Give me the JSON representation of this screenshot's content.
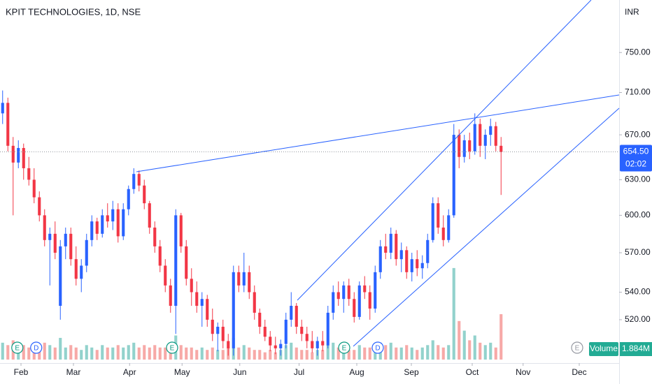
{
  "chart_data": {
    "type": "candlestick",
    "title": "KPIT TECHNOLOGIES, 1D, NSE",
    "y_axis_label": "INR",
    "log_scale": true,
    "ylim": [
      490,
      806
    ],
    "xlim": [
      0,
      118
    ],
    "yticks": [
      {
        "value": 520,
        "label": "520.00"
      },
      {
        "value": 540,
        "label": "540.00"
      },
      {
        "value": 570,
        "label": "570.00"
      },
      {
        "value": 600,
        "label": "600.00"
      },
      {
        "value": 630,
        "label": "630.00"
      },
      {
        "value": 670,
        "label": "670.00"
      },
      {
        "value": 710,
        "label": "710.00"
      },
      {
        "value": 750,
        "label": "750.00"
      }
    ],
    "xticks": [
      {
        "value": 4,
        "label": "Feb"
      },
      {
        "value": 14,
        "label": "Mar"
      },
      {
        "value": 24.7,
        "label": "Apr"
      },
      {
        "value": 34.7,
        "label": "May"
      },
      {
        "value": 45.7,
        "label": "Jun"
      },
      {
        "value": 57,
        "label": "Jul"
      },
      {
        "value": 68,
        "label": "Aug"
      },
      {
        "value": 78.4,
        "label": "Sep"
      },
      {
        "value": 90,
        "label": "Oct"
      },
      {
        "value": 99.7,
        "label": "Nov"
      },
      {
        "value": 110.4,
        "label": "Dec"
      }
    ],
    "up_color": "#2962ff",
    "down_color": "#f23645",
    "volume_up_color": "#26a69a",
    "volume_down_color": "#ef5350",
    "last_price": {
      "value": 654.5,
      "label": "654.50",
      "countdown": "02:02"
    },
    "volume_legend": {
      "label": "Volume",
      "value_label": "1.884M"
    },
    "events": [
      {
        "x": 3.3,
        "label": "E",
        "color": "#089981"
      },
      {
        "x": 6.9,
        "label": "D",
        "color": "#2962ff"
      },
      {
        "x": 32.8,
        "label": "E",
        "color": "#089981"
      },
      {
        "x": 65.6,
        "label": "E",
        "color": "#089981"
      },
      {
        "x": 72,
        "label": "D",
        "color": "#2962ff"
      },
      {
        "x": 110,
        "label": "E",
        "color": "#9598a1"
      }
    ],
    "ohlc": [
      [
        690,
        712,
        680,
        700
      ],
      [
        700,
        705,
        655,
        660
      ],
      [
        660,
        668,
        600,
        645
      ],
      [
        645,
        665,
        640,
        658
      ],
      [
        658,
        662,
        630,
        640
      ],
      [
        640,
        650,
        625,
        630
      ],
      [
        630,
        640,
        610,
        615
      ],
      [
        615,
        620,
        595,
        600
      ],
      [
        600,
        605,
        575,
        580
      ],
      [
        580,
        590,
        545,
        585
      ],
      [
        585,
        595,
        565,
        570
      ],
      [
        530,
        580,
        520,
        575
      ],
      [
        575,
        590,
        565,
        585
      ],
      [
        585,
        590,
        560,
        565
      ],
      [
        565,
        575,
        545,
        550
      ],
      [
        550,
        565,
        540,
        560
      ],
      [
        560,
        585,
        555,
        580
      ],
      [
        580,
        600,
        575,
        595
      ],
      [
        595,
        598,
        580,
        585
      ],
      [
        585,
        605,
        582,
        600
      ],
      [
        600,
        610,
        590,
        595
      ],
      [
        595,
        612,
        588,
        605
      ],
      [
        605,
        610,
        578,
        583
      ],
      [
        583,
        610,
        580,
        605
      ],
      [
        605,
        625,
        600,
        622
      ],
      [
        622,
        640,
        618,
        635
      ],
      [
        635,
        638,
        620,
        625
      ],
      [
        625,
        630,
        605,
        610
      ],
      [
        610,
        612,
        585,
        590
      ],
      [
        590,
        595,
        570,
        575
      ],
      [
        575,
        580,
        555,
        560
      ],
      [
        560,
        565,
        540,
        545
      ],
      [
        545,
        550,
        525,
        530
      ],
      [
        530,
        605,
        510,
        600
      ],
      [
        600,
        602,
        570,
        575
      ],
      [
        575,
        580,
        545,
        550
      ],
      [
        550,
        558,
        530,
        540
      ],
      [
        540,
        548,
        525,
        530
      ],
      [
        530,
        540,
        515,
        535
      ],
      [
        535,
        538,
        515,
        520
      ],
      [
        520,
        528,
        505,
        510
      ],
      [
        510,
        518,
        498,
        515
      ],
      [
        515,
        520,
        500,
        505
      ],
      [
        505,
        510,
        495,
        500
      ],
      [
        500,
        560,
        495,
        555
      ],
      [
        555,
        560,
        540,
        545
      ],
      [
        545,
        570,
        540,
        555
      ],
      [
        555,
        560,
        535,
        540
      ],
      [
        540,
        545,
        520,
        525
      ],
      [
        525,
        528,
        510,
        515
      ],
      [
        515,
        520,
        505,
        508
      ],
      [
        508,
        512,
        498,
        502
      ],
      [
        502,
        508,
        496,
        500
      ],
      [
        500,
        506,
        495,
        503
      ],
      [
        503,
        525,
        500,
        520
      ],
      [
        520,
        540,
        515,
        530
      ],
      [
        530,
        532,
        510,
        515
      ],
      [
        515,
        520,
        505,
        510
      ],
      [
        510,
        515,
        500,
        505
      ],
      [
        505,
        512,
        497,
        500
      ],
      [
        500,
        508,
        495,
        505
      ],
      [
        505,
        512,
        498,
        502
      ],
      [
        502,
        530,
        500,
        525
      ],
      [
        525,
        545,
        520,
        540
      ],
      [
        540,
        548,
        530,
        535
      ],
      [
        535,
        548,
        525,
        545
      ],
      [
        545,
        550,
        530,
        535
      ],
      [
        535,
        540,
        518,
        522
      ],
      [
        522,
        548,
        520,
        545
      ],
      [
        545,
        552,
        535,
        540
      ],
      [
        540,
        545,
        520,
        528
      ],
      [
        528,
        560,
        525,
        555
      ],
      [
        555,
        580,
        550,
        575
      ],
      [
        575,
        585,
        565,
        570
      ],
      [
        570,
        590,
        565,
        585
      ],
      [
        585,
        588,
        560,
        565
      ],
      [
        565,
        578,
        555,
        572
      ],
      [
        572,
        575,
        550,
        555
      ],
      [
        555,
        570,
        548,
        565
      ],
      [
        565,
        572,
        552,
        558
      ],
      [
        558,
        568,
        550,
        562
      ],
      [
        562,
        585,
        558,
        580
      ],
      [
        580,
        615,
        578,
        610
      ],
      [
        610,
        615,
        585,
        590
      ],
      [
        590,
        600,
        575,
        580
      ],
      [
        580,
        605,
        578,
        600
      ],
      [
        600,
        680,
        598,
        670
      ],
      [
        670,
        675,
        640,
        650
      ],
      [
        650,
        670,
        645,
        665
      ],
      [
        665,
        672,
        648,
        655
      ],
      [
        655,
        690,
        652,
        680
      ],
      [
        680,
        685,
        650,
        660
      ],
      [
        660,
        675,
        648,
        670
      ],
      [
        670,
        685,
        660,
        678
      ],
      [
        678,
        682,
        655,
        660
      ],
      [
        660,
        668,
        617,
        654.5
      ]
    ],
    "volume": [
      0.7,
      0.6,
      0.8,
      0.5,
      0.6,
      0.5,
      0.6,
      0.5,
      0.7,
      0.6,
      0.5,
      0.9,
      0.5,
      0.6,
      0.5,
      0.4,
      0.6,
      0.5,
      0.4,
      0.6,
      0.5,
      0.5,
      0.6,
      0.5,
      0.6,
      0.7,
      0.5,
      0.6,
      0.5,
      0.6,
      0.5,
      0.5,
      0.7,
      1.0,
      0.6,
      0.5,
      0.5,
      0.4,
      0.5,
      0.4,
      0.5,
      0.4,
      0.4,
      0.5,
      0.9,
      0.5,
      0.6,
      0.5,
      0.4,
      0.4,
      0.3,
      0.4,
      0.3,
      0.4,
      0.6,
      0.7,
      0.5,
      0.4,
      0.4,
      0.3,
      0.4,
      0.4,
      0.6,
      0.7,
      0.5,
      0.5,
      0.4,
      0.4,
      0.6,
      0.5,
      0.5,
      0.6,
      0.7,
      0.6,
      0.7,
      0.5,
      0.5,
      0.6,
      0.5,
      0.4,
      0.5,
      0.6,
      0.8,
      0.6,
      0.5,
      0.6,
      3.8,
      1.6,
      1.2,
      0.8,
      1.0,
      0.7,
      0.6,
      0.7,
      0.5,
      1.884
    ]
  }
}
